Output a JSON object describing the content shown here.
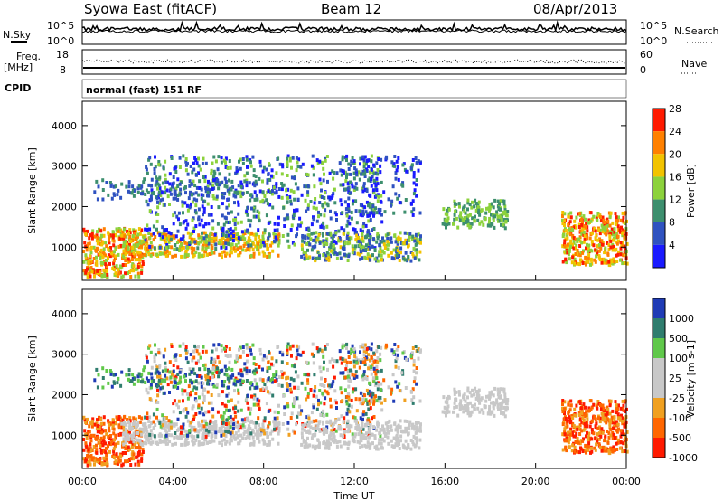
{
  "header": {
    "site": "Syowa East (fitACF)",
    "beam": "Beam 12",
    "date": "08/Apr/2013"
  },
  "noise_panel": {
    "left_label": "N.Sky",
    "left_ticks": [
      "10^5",
      "10^0"
    ],
    "right_label": "N.Search",
    "right_ticks": [
      "10^5",
      "10^0"
    ]
  },
  "freq_panel": {
    "left_label_1": "Freq.",
    "left_label_2": "[MHz]",
    "left_ticks": [
      "18",
      "8"
    ],
    "right_label": "Nave",
    "right_ticks": [
      "60",
      "0"
    ]
  },
  "cpid": {
    "label": "CPID",
    "value": "normal (fast) 151 RF"
  },
  "chart_data": [
    {
      "type": "heatmap",
      "name": "power",
      "ylabel": "Slant Range [km]",
      "y_ticks": [
        "1000",
        "2000",
        "3000",
        "4000"
      ],
      "ylim": [
        180,
        4600
      ],
      "colorbar_label": "Power [dB]",
      "colorbar_ticks": [
        "4",
        "8",
        "12",
        "16",
        "20",
        "24",
        "28"
      ],
      "colorbar_colors": [
        "#1a1aff",
        "#2f52c0",
        "#3d8f6e",
        "#8cd23c",
        "#f2c300",
        "#ff8000",
        "#ff1a00"
      ]
    },
    {
      "type": "heatmap",
      "name": "velocity",
      "ylabel": "Slant Range [km]",
      "y_ticks": [
        "1000",
        "2000",
        "3000",
        "4000"
      ],
      "ylim": [
        180,
        4600
      ],
      "xlabel": "Time UT",
      "x_ticks": [
        "00:00",
        "04:00",
        "08:00",
        "12:00",
        "16:00",
        "20:00",
        "00:00"
      ],
      "colorbar_label": "Velocity [m s-1]",
      "colorbar_ticks": [
        "1000",
        "500",
        "100",
        "25",
        "-25",
        "-100",
        "-500",
        "-1000"
      ],
      "colorbar_colors": [
        "#1f3bb5",
        "#2f7d6e",
        "#60c84a",
        "#c8c8c8",
        "#c8c8c8",
        "#f0a020",
        "#ff6600",
        "#ff1a00"
      ]
    }
  ]
}
